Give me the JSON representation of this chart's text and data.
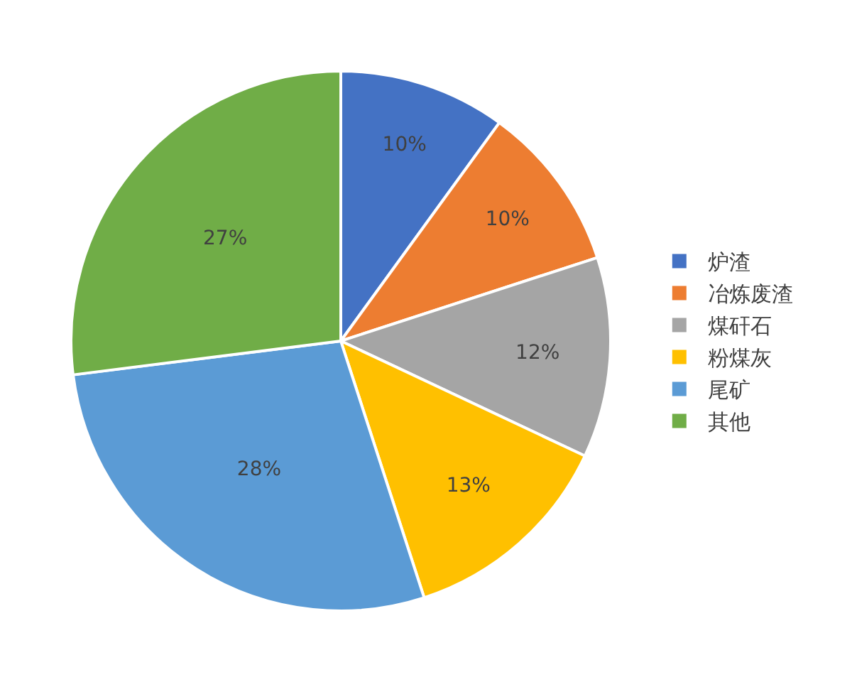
{
  "chart_data": {
    "type": "pie",
    "categories": [
      "炉渣",
      "冶炼废渣",
      "煤矸石",
      "粉煤灰",
      "尾矿",
      "其他"
    ],
    "values": [
      10,
      10,
      12,
      13,
      28,
      27
    ],
    "colors": [
      "#4472c4",
      "#ed7d31",
      "#a5a5a5",
      "#ffc000",
      "#5b9bd5",
      "#70ad47"
    ],
    "value_labels": [
      "10%",
      "10%",
      "12%",
      "13%",
      "28%",
      "27%"
    ],
    "legend": "right"
  }
}
